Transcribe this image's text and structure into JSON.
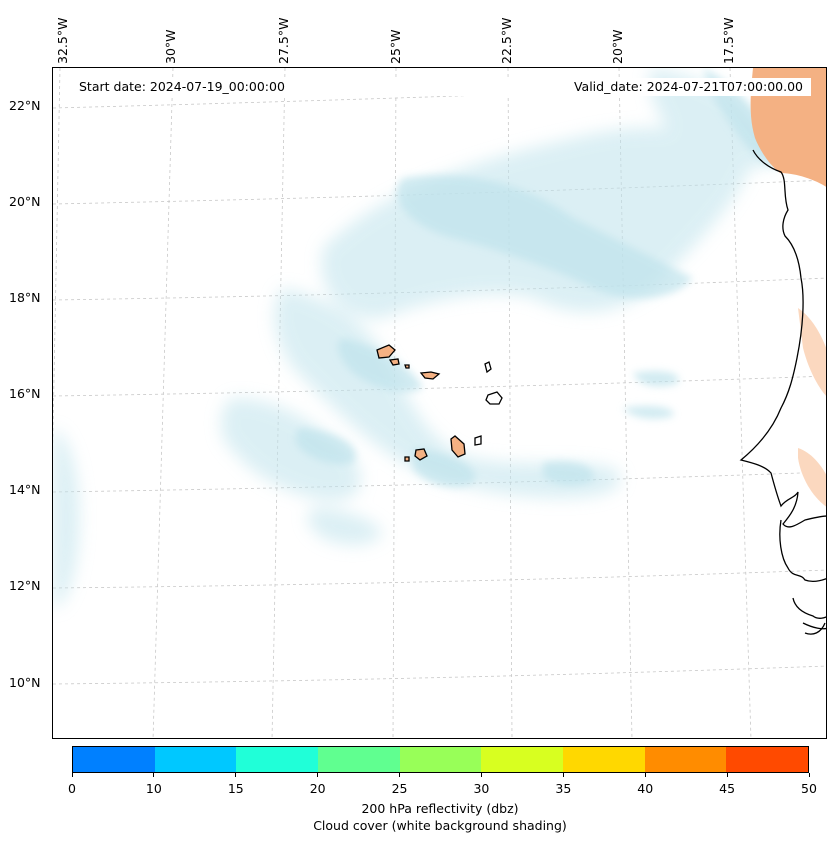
{
  "map": {
    "start_date": "Start date: 2024-07-19_00:00:00",
    "valid_date": "Valid_date: 2024-07-21T07:00:00.00",
    "longitude_labels": [
      "32.5°W",
      "30°W",
      "27.5°W",
      "25°W",
      "22.5°W",
      "20°W",
      "17.5°W"
    ],
    "latitude_labels": [
      "22°N",
      "20°N",
      "18°N",
      "16°N",
      "14°N",
      "12°N",
      "10°N"
    ],
    "land_color": "#f4b183",
    "cloud_color": "#bfe3ec",
    "features": [
      "Cape Verde islands",
      "West African coastline"
    ]
  },
  "colorbar": {
    "ticks": [
      "0",
      "10",
      "15",
      "20",
      "25",
      "30",
      "35",
      "40",
      "45",
      "50"
    ],
    "colors": [
      "#0080ff",
      "#00c8ff",
      "#20ffd8",
      "#60ff90",
      "#98ff58",
      "#d8ff20",
      "#ffd800",
      "#ff8c00",
      "#ff4a00"
    ],
    "title_line1": "200 hPa reflectivity (dbz)",
    "title_line2": "Cloud cover (white background shading)"
  }
}
